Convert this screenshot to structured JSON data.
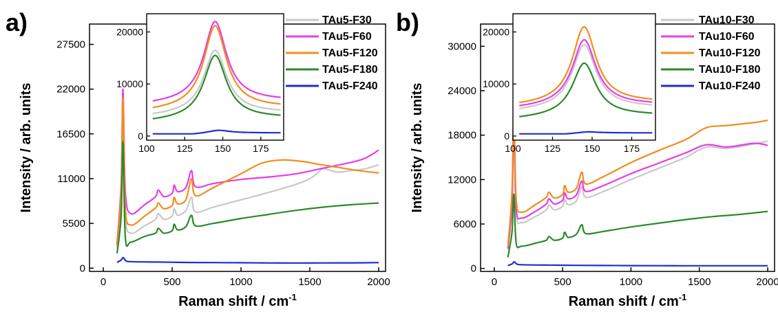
{
  "chart_data": [
    {
      "panel_label": "a)",
      "type": "line",
      "xlabel": "Raman shift / cm",
      "xlabel_sup": "-1",
      "ylabel": "Intensity / arb. units",
      "xlim": [
        -100,
        2050
      ],
      "ylim": [
        -400,
        30000
      ],
      "xticks": [
        0,
        500,
        1000,
        1500,
        2000
      ],
      "yticks": [
        0,
        5500,
        11000,
        16500,
        22000,
        27500
      ],
      "grid": false,
      "legend_position": "top-right",
      "series": [
        {
          "name": "TAu5-F30",
          "color": "#c8c8c8",
          "x": [
            100,
            130,
            143,
            160,
            200,
            300,
            380,
            400,
            440,
            500,
            515,
            540,
            600,
            640,
            670,
            800,
            1000,
            1200,
            1400,
            1500,
            1550,
            1600,
            1700,
            1800,
            1900,
            2000
          ],
          "y": [
            2500,
            9000,
            19000,
            6500,
            4300,
            5200,
            6000,
            6700,
            6000,
            6400,
            7300,
            6500,
            7100,
            8700,
            6900,
            7500,
            8400,
            9300,
            10300,
            11000,
            11600,
            12200,
            11800,
            12000,
            12200,
            12700
          ]
        },
        {
          "name": "TAu5-F60",
          "color": "#e83be8",
          "x": [
            100,
            130,
            143,
            160,
            200,
            300,
            380,
            400,
            440,
            500,
            515,
            540,
            600,
            640,
            670,
            800,
            1000,
            1200,
            1400,
            1600,
            1800,
            1900,
            2000
          ],
          "y": [
            3000,
            10500,
            22000,
            9500,
            6700,
            7800,
            8800,
            9600,
            8800,
            9200,
            10200,
            9400,
            9900,
            12000,
            10000,
            10400,
            10900,
            11200,
            11600,
            12300,
            13000,
            13500,
            14500
          ]
        },
        {
          "name": "TAu5-F120",
          "color": "#f28c1c",
          "x": [
            100,
            130,
            143,
            160,
            200,
            300,
            380,
            400,
            440,
            500,
            515,
            540,
            600,
            640,
            670,
            800,
            1000,
            1150,
            1300,
            1450,
            1550,
            1700,
            1850,
            2000
          ],
          "y": [
            2800,
            9500,
            21000,
            7500,
            5300,
            6400,
            7400,
            8000,
            7300,
            7700,
            8700,
            7900,
            8400,
            11000,
            8900,
            9900,
            11600,
            12900,
            13300,
            13100,
            12800,
            12400,
            12000,
            11700
          ]
        },
        {
          "name": "TAu5-F180",
          "color": "#2a8a2a",
          "x": [
            100,
            130,
            143,
            160,
            200,
            300,
            380,
            400,
            440,
            500,
            515,
            540,
            600,
            640,
            670,
            800,
            1000,
            1200,
            1400,
            1600,
            1800,
            2000
          ],
          "y": [
            1800,
            6500,
            15500,
            3800,
            3200,
            3900,
            4300,
            4900,
            4300,
            4600,
            5400,
            4700,
            5100,
            6500,
            5200,
            5500,
            6100,
            6600,
            7100,
            7500,
            7800,
            8000
          ]
        },
        {
          "name": "TAu5-F240",
          "color": "#1f2bd6",
          "x": [
            100,
            130,
            145,
            165,
            200,
            400,
            600,
            800,
            1000,
            1200,
            1400,
            1600,
            1800,
            2000
          ],
          "y": [
            700,
            1000,
            1300,
            900,
            800,
            750,
            700,
            680,
            660,
            640,
            630,
            640,
            650,
            680
          ]
        }
      ],
      "inset": {
        "xlim": [
          100,
          190
        ],
        "ylim": [
          -800,
          23500
        ],
        "xticks": [
          100,
          125,
          150,
          175
        ],
        "yticks": [
          0,
          10000,
          20000
        ],
        "peaks": [
          {
            "name": "TAu5-F30",
            "center": 145,
            "height": 16500,
            "base": 4500
          },
          {
            "name": "TAu5-F60",
            "center": 145,
            "height": 22000,
            "base": 6800
          },
          {
            "name": "TAu5-F120",
            "center": 145,
            "height": 21200,
            "base": 5500
          },
          {
            "name": "TAu5-F180",
            "center": 145,
            "height": 15500,
            "base": 3500
          },
          {
            "name": "TAu5-F240",
            "center": 147,
            "height": 1100,
            "base": 600
          }
        ]
      }
    },
    {
      "panel_label": "b)",
      "type": "line",
      "xlabel": "Raman shift / cm",
      "xlabel_sup": "-1",
      "ylabel": "Intensity / arb. units",
      "xlim": [
        -100,
        2050
      ],
      "ylim": [
        -400,
        33000
      ],
      "xticks": [
        0,
        500,
        1000,
        1500,
        2000
      ],
      "yticks": [
        0,
        6000,
        12000,
        18000,
        24000,
        30000
      ],
      "grid": false,
      "legend_position": "top-right",
      "series": [
        {
          "name": "TAu10-F30",
          "color": "#c8c8c8",
          "x": [
            100,
            130,
            143,
            160,
            200,
            300,
            380,
            400,
            440,
            500,
            515,
            540,
            600,
            640,
            670,
            800,
            1000,
            1200,
            1400,
            1550,
            1700,
            1900,
            2000
          ],
          "y": [
            2500,
            8500,
            19000,
            7500,
            6200,
            7000,
            7900,
            8600,
            7900,
            8400,
            9300,
            8600,
            9100,
            11000,
            9600,
            10400,
            12000,
            13500,
            15000,
            16400,
            16200,
            16800,
            17200
          ]
        },
        {
          "name": "TAu10-F60",
          "color": "#e83be8",
          "x": [
            100,
            130,
            143,
            160,
            200,
            300,
            380,
            400,
            440,
            500,
            515,
            540,
            600,
            640,
            670,
            800,
            1000,
            1200,
            1400,
            1550,
            1700,
            1900,
            2000
          ],
          "y": [
            2700,
            9000,
            20000,
            8200,
            6800,
            7700,
            8700,
            9400,
            8700,
            9200,
            10200,
            9400,
            9900,
            11800,
            10400,
            11200,
            12800,
            14200,
            15600,
            16700,
            16400,
            16900,
            16600
          ]
        },
        {
          "name": "TAu10-F120",
          "color": "#f28c1c",
          "x": [
            100,
            130,
            143,
            160,
            200,
            300,
            380,
            400,
            440,
            500,
            515,
            540,
            600,
            640,
            670,
            800,
            1000,
            1200,
            1400,
            1550,
            1700,
            1900,
            2000
          ],
          "y": [
            3000,
            10500,
            22500,
            9500,
            7600,
            8600,
            9600,
            10300,
            9500,
            10000,
            11200,
            10300,
            10800,
            13000,
            11400,
            12400,
            14300,
            15900,
            17400,
            19000,
            19300,
            19700,
            20000
          ]
        },
        {
          "name": "TAu10-F180",
          "color": "#2a8a2a",
          "x": [
            100,
            130,
            143,
            160,
            200,
            300,
            380,
            400,
            440,
            500,
            515,
            540,
            600,
            640,
            670,
            800,
            1000,
            1200,
            1400,
            1600,
            1800,
            2000
          ],
          "y": [
            1500,
            5000,
            10000,
            3500,
            3000,
            3400,
            3800,
            4300,
            3800,
            4100,
            4900,
            4200,
            4600,
            5900,
            4700,
            5000,
            5600,
            6100,
            6600,
            7000,
            7300,
            7700
          ]
        },
        {
          "name": "TAu10-F240",
          "color": "#1f2bd6",
          "x": [
            100,
            130,
            145,
            165,
            200,
            400,
            600,
            800,
            1000,
            1200,
            1400,
            1600,
            1800,
            2000
          ],
          "y": [
            400,
            600,
            900,
            600,
            500,
            450,
            420,
            400,
            380,
            370,
            360,
            360,
            360,
            360
          ]
        }
      ],
      "inset": {
        "xlim": [
          100,
          190
        ],
        "ylim": [
          -800,
          23500
        ],
        "xticks": [
          100,
          125,
          150,
          175
        ],
        "yticks": [
          0,
          10000,
          20000
        ],
        "peaks": [
          {
            "name": "TAu10-F30",
            "center": 145,
            "height": 17500,
            "base": 5500
          },
          {
            "name": "TAu10-F60",
            "center": 145,
            "height": 18500,
            "base": 6000
          },
          {
            "name": "TAu10-F120",
            "center": 145,
            "height": 21000,
            "base": 6500
          },
          {
            "name": "TAu10-F180",
            "center": 145,
            "height": 14000,
            "base": 4000
          },
          {
            "name": "TAu10-F240",
            "center": 147,
            "height": 800,
            "base": 600
          }
        ]
      }
    }
  ]
}
